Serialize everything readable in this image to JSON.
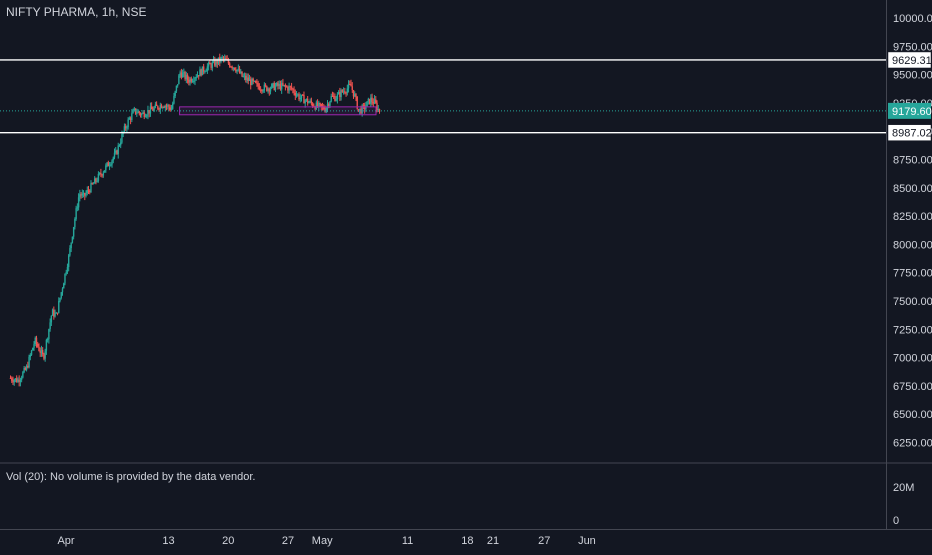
{
  "chart_data": {
    "type": "candlestick",
    "symbol_label": "NIFTY PHARMA, 1h, NSE",
    "ylim": [
      6050,
      10100
    ],
    "y_ticks": [
      10000,
      9750,
      9500,
      9250,
      9000,
      8750,
      8500,
      8250,
      8000,
      7750,
      7500,
      7250,
      7000,
      6750,
      6500,
      6250
    ],
    "y_tick_labels": [
      "10000.00",
      "9750.00",
      "9500.00",
      "9250.00",
      "9000.00",
      "8750.00",
      "8500.00",
      "8250.00",
      "8000.00",
      "7750.00",
      "7500.00",
      "7250.00",
      "7000.00",
      "6750.00",
      "6500.00",
      "6250.00"
    ],
    "x_ticks": [
      {
        "label": "Apr",
        "day": 0
      },
      {
        "label": "13",
        "day": 12
      },
      {
        "label": "20",
        "day": 19
      },
      {
        "label": "27",
        "day": 26
      },
      {
        "label": "May",
        "day": 30
      },
      {
        "label": "11",
        "day": 40
      },
      {
        "label": "18",
        "day": 47
      },
      {
        "label": "21",
        "day": 50
      },
      {
        "label": "27",
        "day": 56
      },
      {
        "label": "Jun",
        "day": 61
      }
    ],
    "candle_anchors": [
      [
        -6.5,
        6820
      ],
      [
        -5.5,
        6800
      ],
      [
        -4.5,
        6900
      ],
      [
        -3.5,
        7150
      ],
      [
        -2.5,
        7000
      ],
      [
        -1.5,
        7400
      ],
      [
        -1.0,
        7370
      ],
      [
        0.5,
        7900
      ],
      [
        1.0,
        8150
      ],
      [
        1.7,
        8450
      ],
      [
        2.2,
        8420
      ],
      [
        6.0,
        8800
      ],
      [
        6.8,
        8980
      ],
      [
        7.5,
        9100
      ],
      [
        8.2,
        9180
      ],
      [
        9.0,
        9150
      ],
      [
        10.5,
        9200
      ],
      [
        11.5,
        9240
      ],
      [
        12.5,
        9200
      ],
      [
        13.5,
        9520
      ],
      [
        14.5,
        9450
      ],
      [
        15.5,
        9500
      ],
      [
        16.5,
        9560
      ],
      [
        17.5,
        9600
      ],
      [
        18.5,
        9640
      ],
      [
        19.2,
        9600
      ],
      [
        20.0,
        9560
      ],
      [
        20.8,
        9480
      ],
      [
        21.5,
        9450
      ],
      [
        22.5,
        9400
      ],
      [
        23.5,
        9380
      ],
      [
        25.0,
        9400
      ],
      [
        26.5,
        9380
      ],
      [
        27.5,
        9300
      ],
      [
        28.5,
        9260
      ],
      [
        29.5,
        9220
      ],
      [
        30.5,
        9200
      ],
      [
        31.2,
        9300
      ],
      [
        31.8,
        9300
      ],
      [
        32.5,
        9350
      ],
      [
        33.5,
        9400
      ],
      [
        34.0,
        9300
      ],
      [
        34.4,
        9180
      ],
      [
        35.0,
        9200
      ],
      [
        35.8,
        9280
      ],
      [
        36.3,
        9250
      ],
      [
        36.8,
        9180
      ]
    ],
    "horizontal_levels": [
      {
        "value": "9629.31",
        "color": "#ffffff"
      },
      {
        "value": "8987.02",
        "color": "#ffffff"
      }
    ],
    "last_price": {
      "value": "9179.60",
      "color": "#26a69a"
    },
    "zone_box": {
      "from_day": 13.3,
      "to_day": 36.3,
      "low": 9145,
      "high": 9215,
      "color": "#9c27b0"
    },
    "volume_panel": {
      "label": "Vol (20): No volume is provided by the data vendor.",
      "ticks": [
        "20M",
        "0"
      ]
    },
    "colors": {
      "up": "#26a69a",
      "down": "#ef5350",
      "grid": "#2a2e39",
      "text": "#d1d4dc",
      "background": "#131722"
    },
    "grid": false
  }
}
